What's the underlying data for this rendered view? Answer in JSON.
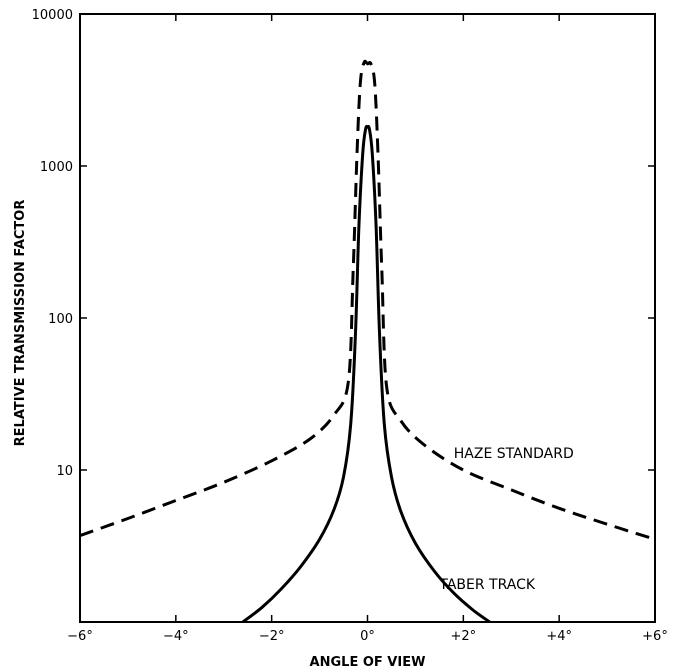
{
  "chart_data": {
    "type": "line",
    "title": "",
    "xlabel": "ANGLE OF VIEW",
    "ylabel": "RELATIVE TRANSMISSION FACTOR",
    "xlim": [
      -6,
      6
    ],
    "ylim": [
      1,
      10000
    ],
    "y_scale": "log",
    "grid": false,
    "x_ticks": [
      {
        "value": -6,
        "label": "−6°"
      },
      {
        "value": -4,
        "label": "−4°"
      },
      {
        "value": -2,
        "label": "−2°"
      },
      {
        "value": 0,
        "label": "0°"
      },
      {
        "value": 2,
        "label": "+2°"
      },
      {
        "value": 4,
        "label": "+4°"
      },
      {
        "value": 6,
        "label": "+6°"
      }
    ],
    "y_ticks": [
      {
        "value": 10,
        "label": "10"
      },
      {
        "value": 100,
        "label": "100"
      },
      {
        "value": 1000,
        "label": "1000"
      },
      {
        "value": 10000,
        "label": "10000"
      }
    ],
    "series": [
      {
        "name": "HAZE STANDARD",
        "style": "dashed",
        "color": "#000000",
        "points": [
          [
            -6,
            3.7
          ],
          [
            -5,
            4.8
          ],
          [
            -4,
            6.3
          ],
          [
            -3,
            8.3
          ],
          [
            -2,
            11.5
          ],
          [
            -1.2,
            16
          ],
          [
            -0.7,
            23
          ],
          [
            -0.4,
            38
          ],
          [
            -0.3,
            200
          ],
          [
            -0.22,
            1200
          ],
          [
            -0.15,
            3500
          ],
          [
            -0.07,
            4800
          ],
          [
            0,
            4700
          ],
          [
            0.07,
            4700
          ],
          [
            0.15,
            3500
          ],
          [
            0.22,
            1200
          ],
          [
            0.3,
            200
          ],
          [
            0.4,
            35
          ],
          [
            0.7,
            21
          ],
          [
            1.2,
            14.5
          ],
          [
            2,
            10
          ],
          [
            3,
            7.4
          ],
          [
            4,
            5.6
          ],
          [
            5,
            4.4
          ],
          [
            6,
            3.5
          ]
        ]
      },
      {
        "name": "TABER TRACK",
        "style": "solid",
        "color": "#000000",
        "points": [
          [
            -2.6,
            1
          ],
          [
            -2.2,
            1.25
          ],
          [
            -1.8,
            1.65
          ],
          [
            -1.4,
            2.3
          ],
          [
            -1.0,
            3.5
          ],
          [
            -0.7,
            5.5
          ],
          [
            -0.5,
            9
          ],
          [
            -0.35,
            20
          ],
          [
            -0.25,
            80
          ],
          [
            -0.18,
            400
          ],
          [
            -0.1,
            1200
          ],
          [
            -0.04,
            1750
          ],
          [
            0,
            1800
          ],
          [
            0.04,
            1750
          ],
          [
            0.1,
            1200
          ],
          [
            0.18,
            400
          ],
          [
            0.25,
            80
          ],
          [
            0.35,
            20
          ],
          [
            0.5,
            9
          ],
          [
            0.7,
            5.3
          ],
          [
            1.0,
            3.3
          ],
          [
            1.4,
            2.15
          ],
          [
            1.8,
            1.55
          ],
          [
            2.2,
            1.2
          ],
          [
            2.55,
            1
          ]
        ]
      }
    ],
    "annotations": [
      {
        "text": "HAZE STANDARD",
        "x": 1.8,
        "y": 12
      },
      {
        "text": "TABER TRACK",
        "x": 1.5,
        "y": 1.65
      }
    ]
  }
}
